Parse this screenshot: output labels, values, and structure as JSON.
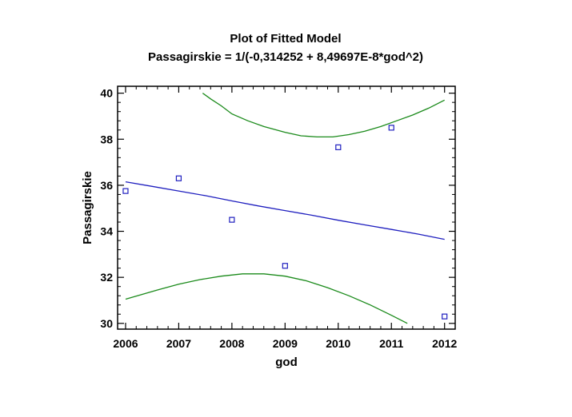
{
  "chart_data": {
    "type": "scatter",
    "title": "Plot of Fitted Model",
    "subtitle": "Passagirskie = 1/(-0,314252 + 8,49697E-8*god^2)",
    "xlabel": "god",
    "ylabel": "Passagirskie",
    "xlim": [
      2005.85,
      2012.2
    ],
    "ylim": [
      29.75,
      40.3
    ],
    "xticks": [
      2006,
      2007,
      2008,
      2009,
      2010,
      2011,
      2012
    ],
    "yticks": [
      30,
      32,
      34,
      36,
      38,
      40
    ],
    "grid": false,
    "colors": {
      "points": "#1f1fbf",
      "fit": "#1f1fbf",
      "limits": "#1a8a1a"
    },
    "points": {
      "x": [
        2006,
        2007,
        2008,
        2009,
        2010,
        2011,
        2012
      ],
      "y": [
        35.75,
        36.3,
        34.5,
        32.5,
        37.65,
        38.5,
        30.3
      ]
    },
    "fitted": {
      "x": [
        2006.0,
        2006.5,
        2007.0,
        2007.5,
        2008.0,
        2008.5,
        2009.0,
        2009.5,
        2010.0,
        2010.5,
        2011.0,
        2011.5,
        2012.0
      ],
      "y": [
        36.15,
        35.95,
        35.75,
        35.55,
        35.32,
        35.1,
        34.9,
        34.7,
        34.48,
        34.28,
        34.08,
        33.88,
        33.65
      ]
    },
    "upper_limit": {
      "x": [
        2007.45,
        2007.6,
        2007.8,
        2008.0,
        2008.3,
        2008.6,
        2009.0,
        2009.3,
        2009.6,
        2009.9,
        2010.2,
        2010.5,
        2010.8,
        2011.1,
        2011.4,
        2011.7,
        2012.0
      ],
      "y": [
        40.0,
        39.75,
        39.45,
        39.1,
        38.8,
        38.55,
        38.3,
        38.15,
        38.1,
        38.1,
        38.2,
        38.35,
        38.55,
        38.8,
        39.05,
        39.35,
        39.7
      ]
    },
    "lower_limit": {
      "x": [
        2006.0,
        2006.3,
        2006.6,
        2007.0,
        2007.4,
        2007.8,
        2008.2,
        2008.6,
        2009.0,
        2009.4,
        2009.8,
        2010.2,
        2010.6,
        2011.0,
        2011.3
      ],
      "y": [
        31.05,
        31.25,
        31.45,
        31.7,
        31.9,
        32.05,
        32.15,
        32.15,
        32.05,
        31.85,
        31.55,
        31.2,
        30.8,
        30.35,
        30.0
      ]
    }
  }
}
